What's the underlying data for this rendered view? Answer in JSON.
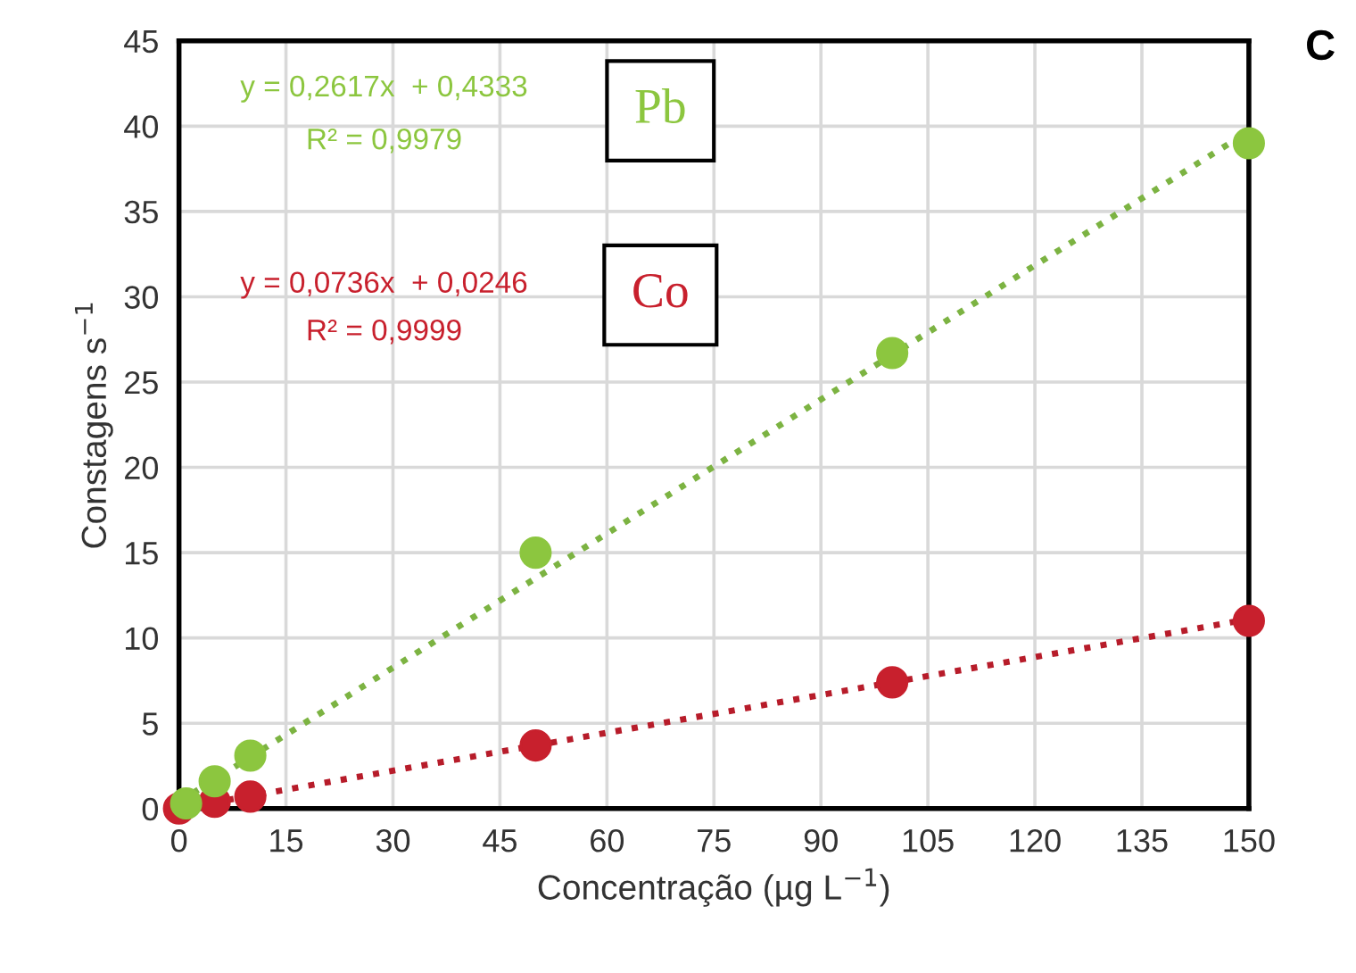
{
  "chart_data": {
    "type": "scatter",
    "xlabel": "Concentração (µg L$^{−1}$)",
    "ylabel": "Constagens s$^{−1}$",
    "xlim": [
      0,
      150
    ],
    "xticks": [
      0,
      15,
      30,
      45,
      60,
      75,
      90,
      105,
      120,
      135,
      150
    ],
    "ylim": [
      0,
      45
    ],
    "yticks": [
      0,
      5,
      10,
      15,
      20,
      25,
      30,
      35,
      40,
      45
    ],
    "grid": true,
    "legend": false,
    "series": [
      {
        "name": "Co",
        "marker": "circle",
        "color": "#c8202d",
        "x": [
          0,
          5,
          10,
          50,
          100,
          150
        ],
        "values": [
          0,
          0.4,
          0.7,
          3.7,
          7.4,
          11
        ]
      },
      {
        "name": "Pb",
        "marker": "circle",
        "color": "#8cc63f",
        "x": [
          1,
          5,
          10,
          50,
          100,
          150
        ],
        "values": [
          0.3,
          1.6,
          3.1,
          15,
          26.7,
          39
        ]
      },
      {
        "type": "line",
        "line_style": "dotted",
        "marker": "none",
        "color": "#b71c2a",
        "x": [
          0,
          150
        ],
        "values": [
          0,
          11.1
        ]
      },
      {
        "type": "line",
        "line_style": "dotted",
        "marker": "none",
        "color": "#7cb342",
        "x": [
          0,
          150
        ],
        "values": [
          0.4,
          39.7
        ]
      }
    ],
    "annotations": [
      "y = 0,0736x  + 0,0246",
      "R² = 0,9999",
      "y = 0,2617x  + 0,4333",
      "R² = 0,9979",
      "C"
    ]
  }
}
